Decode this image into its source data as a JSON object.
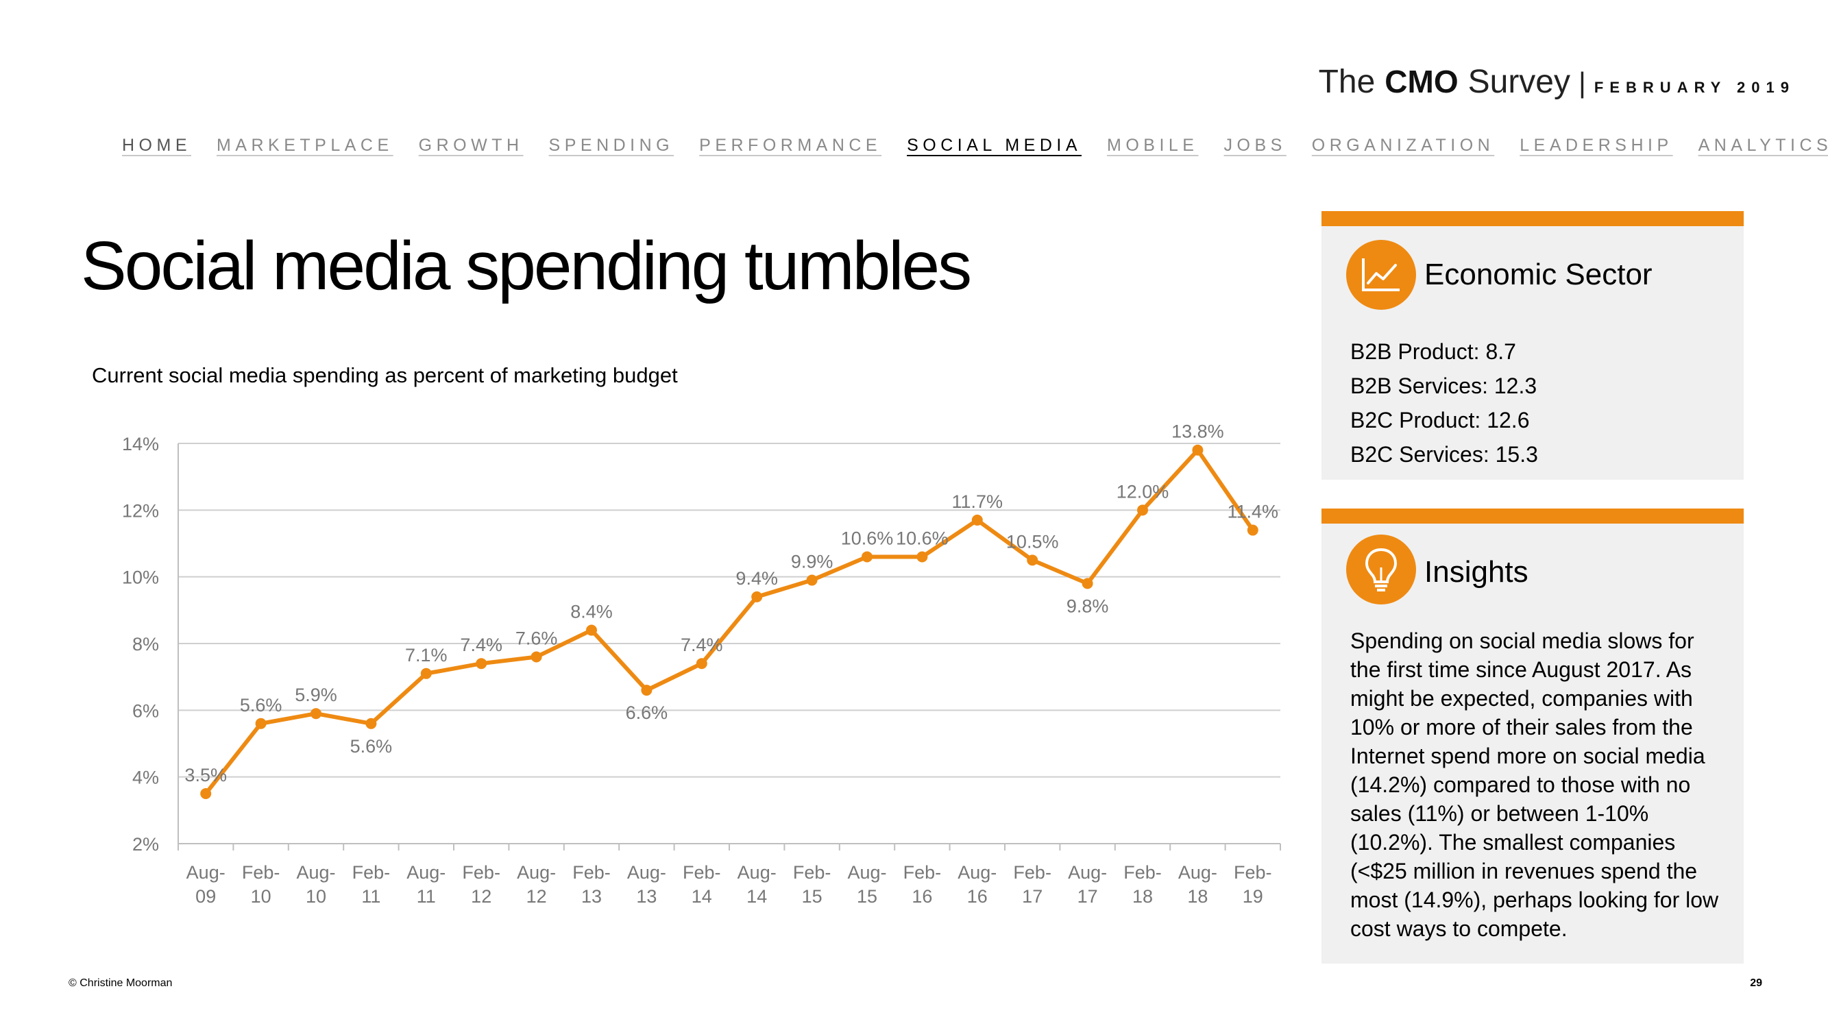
{
  "brand": {
    "the": "The",
    "cmo": "CMO",
    "survey": "Survey",
    "separator": "|",
    "date": "FEBRUARY 2019"
  },
  "nav": {
    "items": [
      "HOME",
      "MARKETPLACE",
      "GROWTH",
      "SPENDING",
      "PERFORMANCE",
      "SOCIAL MEDIA",
      "MOBILE",
      "JOBS",
      "ORGANIZATION",
      "LEADERSHIP",
      "ANALYTICS"
    ],
    "active": "SOCIAL MEDIA"
  },
  "page_title": "Social media spending tumbles",
  "chart_data": {
    "type": "line",
    "title": "Current social media spending as percent of marketing budget",
    "categories": [
      "Aug-09",
      "Feb-10",
      "Aug-10",
      "Feb-11",
      "Aug-11",
      "Feb-12",
      "Aug-12",
      "Feb-13",
      "Aug-13",
      "Feb-14",
      "Aug-14",
      "Feb-15",
      "Aug-15",
      "Feb-16",
      "Aug-16",
      "Feb-17",
      "Aug-17",
      "Feb-18",
      "Aug-18",
      "Feb-19"
    ],
    "values": [
      3.5,
      5.6,
      5.9,
      5.6,
      7.1,
      7.4,
      7.6,
      8.4,
      6.6,
      7.4,
      9.4,
      9.9,
      10.6,
      10.6,
      11.7,
      10.5,
      9.8,
      12.0,
      13.8,
      11.4
    ],
    "data_labels": [
      "3.5%",
      "5.6%",
      "5.9%",
      "5.6%",
      "7.1%",
      "7.4%",
      "7.6%",
      "8.4%",
      "6.6%",
      "7.4%",
      "9.4%",
      "9.9%",
      "10.6%",
      "10.6%",
      "11.7%",
      "10.5%",
      "9.8%",
      "12.0%",
      "13.8%",
      "11.4%"
    ],
    "y_ticks": [
      2,
      4,
      6,
      8,
      10,
      12,
      14
    ],
    "y_tick_labels": [
      "2%",
      "4%",
      "6%",
      "8%",
      "10%",
      "12%",
      "14%"
    ],
    "ylim": [
      2,
      14
    ],
    "xlabel": "",
    "ylabel": "",
    "grid": true,
    "legend": "none",
    "color": "#ee8a12"
  },
  "sector_panel": {
    "heading": "Economic Sector",
    "icon": "line-chart-icon",
    "items": [
      "B2B Product: 8.7",
      "B2B Services: 12.3",
      "B2C Product: 12.6",
      "B2C Services: 15.3"
    ]
  },
  "insights_panel": {
    "heading": "Insights",
    "icon": "lightbulb-icon",
    "text": "Spending on social media slows for the first time since August 2017.  As might be expected, companies with 10% or more of their sales from the Internet spend more on social media (14.2%) compared to those with no sales (11%) or between 1-10% (10.2%). The smallest companies (<$25 million in revenues spend the most (14.9%), perhaps looking for low cost ways to compete."
  },
  "footer": {
    "copyright": "© Christine Moorman",
    "page_number": "29"
  },
  "colors": {
    "accent": "#ee8a12",
    "panel_bg": "#f0f0f0"
  }
}
